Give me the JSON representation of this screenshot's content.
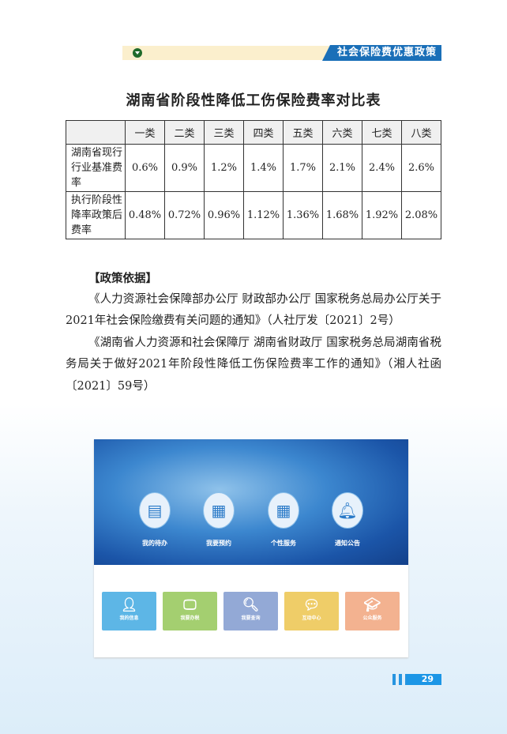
{
  "header": {
    "section": "社会保险费优惠政策",
    "icon": "chevron-down-circle-icon"
  },
  "title": "湖南省阶段性降低工伤保险费率对比表",
  "table": {
    "columns": [
      "",
      "一类",
      "二类",
      "三类",
      "四类",
      "五类",
      "六类",
      "七类",
      "八类"
    ],
    "rows": [
      {
        "label": "湖南省现行行业基准费率",
        "values": [
          "0.6%",
          "0.9%",
          "1.2%",
          "1.4%",
          "1.7%",
          "2.1%",
          "2.4%",
          "2.6%"
        ]
      },
      {
        "label": "执行阶段性降率政策后费率",
        "values": [
          "0.48%",
          "0.72%",
          "0.96%",
          "1.12%",
          "1.36%",
          "1.68%",
          "1.92%",
          "2.08%"
        ]
      }
    ]
  },
  "basis": {
    "heading": "【政策依据】",
    "paragraphs": [
      "《人力资源社会保障部办公厅 财政部办公厅 国家税务总局办公厅关于2021年社会保险缴费有关问题的通知》（人社厅发〔2021〕2号）",
      "《湖南省人力资源和社会保障厅 湖南省财政厅 国家税务总局湖南省税务局关于做好2021年阶段性降低工伤保险费率工作的通知》（湘人社函〔2021〕59号）"
    ]
  },
  "app": {
    "circles": [
      {
        "label": "我的待办",
        "icon": "document-clock-icon"
      },
      {
        "label": "我要预约",
        "icon": "calendar-clock-icon"
      },
      {
        "label": "个性服务",
        "icon": "grid-icon"
      },
      {
        "label": "通知公告",
        "icon": "bell-icon"
      }
    ],
    "tiles": [
      {
        "label": "我的信息",
        "icon": "user-icon",
        "color": "#5db6e6"
      },
      {
        "label": "我要办税",
        "icon": "monitor-icon",
        "color": "#a4cf70"
      },
      {
        "label": "我要查询",
        "icon": "document-search-icon",
        "color": "#93a9d6"
      },
      {
        "label": "互动中心",
        "icon": "chat-icon",
        "color": "#efcd68"
      },
      {
        "label": "公众服务",
        "icon": "graduate-icon",
        "color": "#f3b290"
      }
    ]
  },
  "page_number": "29"
}
